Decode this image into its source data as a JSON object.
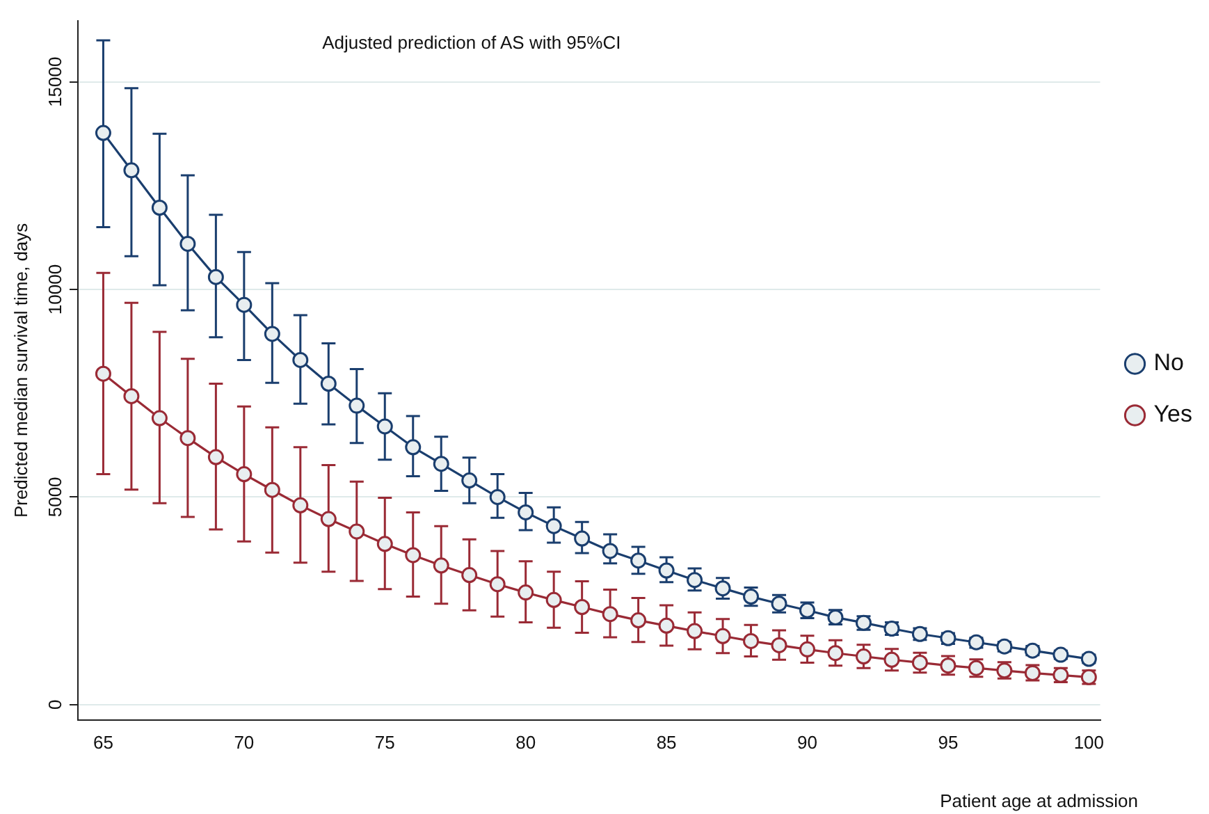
{
  "chart_data": {
    "type": "line",
    "title": "Adjusted prediction of AS with 95%CI",
    "xlabel": "Patient age at admission",
    "ylabel": "Predicted median survival time, days",
    "x": [
      65,
      66,
      67,
      68,
      69,
      70,
      71,
      72,
      73,
      74,
      75,
      76,
      77,
      78,
      79,
      80,
      81,
      82,
      83,
      84,
      85,
      86,
      87,
      88,
      89,
      90,
      91,
      92,
      93,
      94,
      95,
      96,
      97,
      98,
      99,
      100
    ],
    "series": [
      {
        "name": "No",
        "color": "#1a3e6e",
        "values": [
          13770,
          12870,
          11970,
          11100,
          10300,
          9630,
          8930,
          8300,
          7730,
          7200,
          6700,
          6200,
          5800,
          5400,
          5000,
          4630,
          4300,
          4000,
          3700,
          3470,
          3230,
          3000,
          2800,
          2600,
          2430,
          2270,
          2100,
          1970,
          1830,
          1700,
          1600,
          1500,
          1400,
          1300,
          1200,
          1100
        ],
        "errors": [
          [
            11500,
            16000
          ],
          [
            10800,
            14850
          ],
          [
            10100,
            13750
          ],
          [
            9500,
            12750
          ],
          [
            8850,
            11800
          ],
          [
            8300,
            10900
          ],
          [
            7750,
            10150
          ],
          [
            7250,
            9380
          ],
          [
            6750,
            8700
          ],
          [
            6300,
            8080
          ],
          [
            5900,
            7500
          ],
          [
            5500,
            6950
          ],
          [
            5150,
            6450
          ],
          [
            4850,
            5950
          ],
          [
            4500,
            5550
          ],
          [
            4200,
            5100
          ],
          [
            3900,
            4750
          ],
          [
            3650,
            4400
          ],
          [
            3400,
            4100
          ],
          [
            3150,
            3800
          ],
          [
            2950,
            3550
          ],
          [
            2750,
            3280
          ],
          [
            2550,
            3050
          ],
          [
            2380,
            2820
          ],
          [
            2220,
            2640
          ],
          [
            2080,
            2460
          ],
          [
            1930,
            2280
          ],
          [
            1800,
            2130
          ],
          [
            1680,
            1980
          ],
          [
            1560,
            1840
          ],
          [
            1460,
            1720
          ],
          [
            1370,
            1610
          ],
          [
            1280,
            1510
          ],
          [
            1190,
            1410
          ],
          [
            1100,
            1300
          ],
          [
            1000,
            1200
          ]
        ]
      },
      {
        "name": "Yes",
        "color": "#9a2a35",
        "values": [
          7970,
          7430,
          6900,
          6420,
          5960,
          5550,
          5170,
          4800,
          4470,
          4170,
          3870,
          3600,
          3350,
          3120,
          2900,
          2700,
          2520,
          2350,
          2180,
          2030,
          1900,
          1770,
          1650,
          1530,
          1430,
          1330,
          1240,
          1160,
          1080,
          1010,
          940,
          880,
          820,
          760,
          710,
          660
        ],
        "errors": [
          [
            5550,
            10400
          ],
          [
            5180,
            9680
          ],
          [
            4850,
            8980
          ],
          [
            4520,
            8330
          ],
          [
            4220,
            7730
          ],
          [
            3930,
            7180
          ],
          [
            3660,
            6680
          ],
          [
            3420,
            6200
          ],
          [
            3200,
            5770
          ],
          [
            2980,
            5370
          ],
          [
            2780,
            4980
          ],
          [
            2600,
            4630
          ],
          [
            2430,
            4300
          ],
          [
            2270,
            3980
          ],
          [
            2120,
            3700
          ],
          [
            1980,
            3450
          ],
          [
            1850,
            3200
          ],
          [
            1730,
            2970
          ],
          [
            1620,
            2770
          ],
          [
            1510,
            2570
          ],
          [
            1420,
            2390
          ],
          [
            1330,
            2220
          ],
          [
            1240,
            2060
          ],
          [
            1160,
            1920
          ],
          [
            1080,
            1790
          ],
          [
            1010,
            1660
          ],
          [
            940,
            1550
          ],
          [
            880,
            1440
          ],
          [
            820,
            1340
          ],
          [
            770,
            1250
          ],
          [
            720,
            1170
          ],
          [
            670,
            1090
          ],
          [
            630,
            1020
          ],
          [
            580,
            950
          ],
          [
            540,
            880
          ],
          [
            500,
            820
          ]
        ]
      }
    ],
    "xlim": [
      64.1,
      100.4
    ],
    "xticks": [
      65,
      70,
      75,
      80,
      85,
      90,
      95,
      100
    ],
    "ylim": [
      -370,
      16470
    ],
    "yticks": [
      0,
      5000,
      10000,
      15000
    ],
    "grid": "y",
    "legend": "right",
    "marker": "circle",
    "line_style": "solid"
  }
}
